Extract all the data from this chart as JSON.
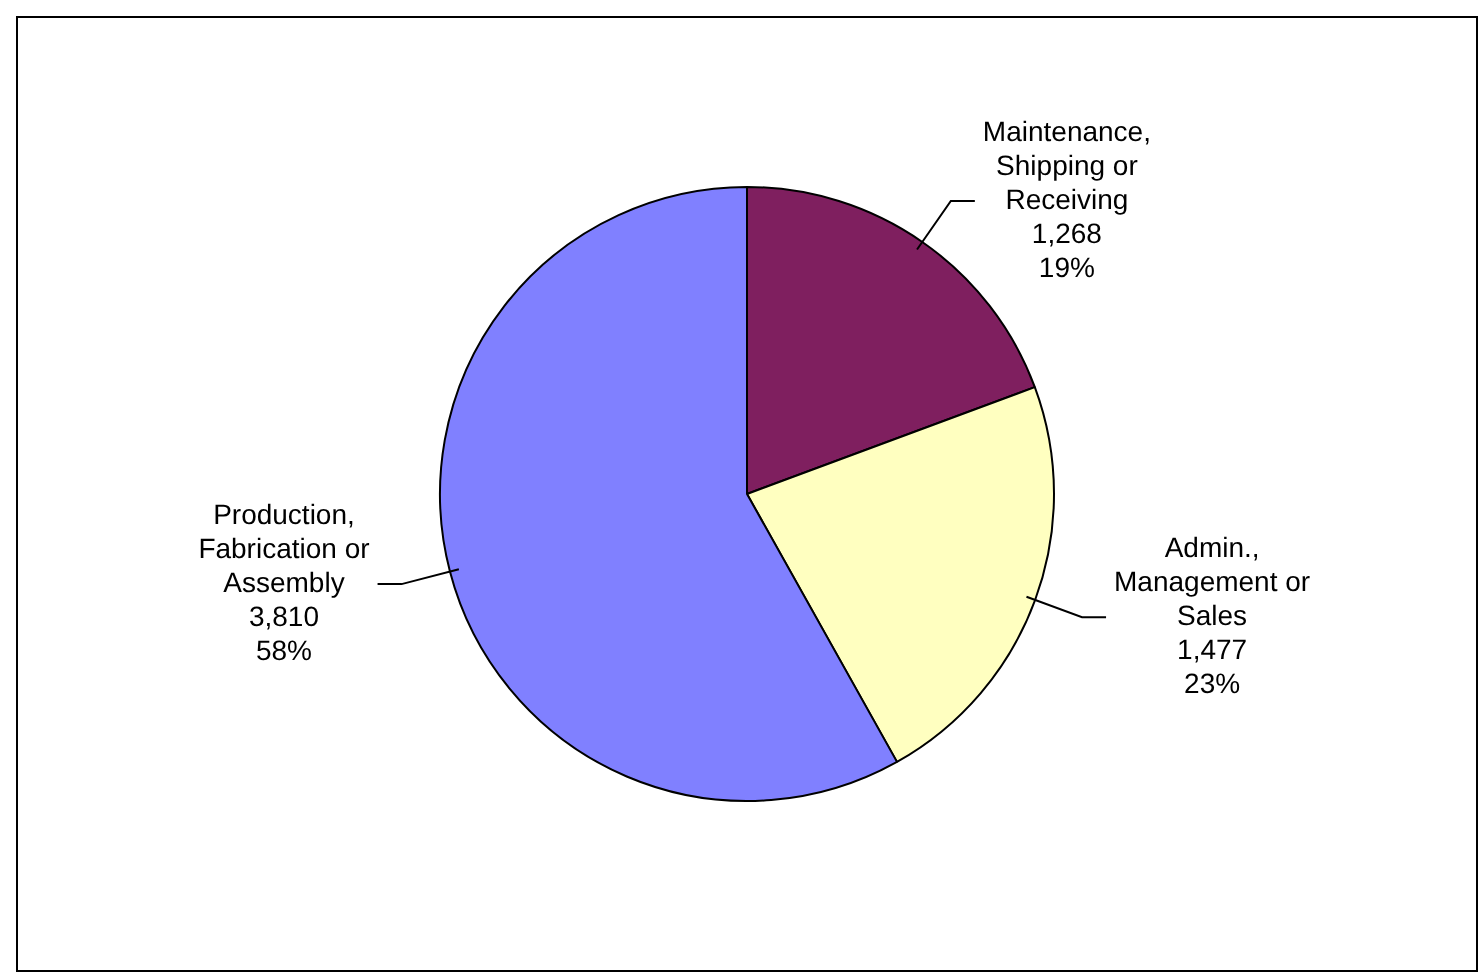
{
  "chart_data": {
    "type": "pie",
    "categories": [
      "Maintenance, Shipping or Receiving",
      "Admin., Management or Sales",
      "Production, Fabrication or Assembly"
    ],
    "values": [
      1268,
      1477,
      3810
    ],
    "colors": [
      "#7f1f5f",
      "#ffffc0",
      "#8080ff"
    ],
    "value_labels": [
      "1,268\n19%",
      "1,477\n23%",
      "3,810\n58%"
    ],
    "legend": false
  }
}
